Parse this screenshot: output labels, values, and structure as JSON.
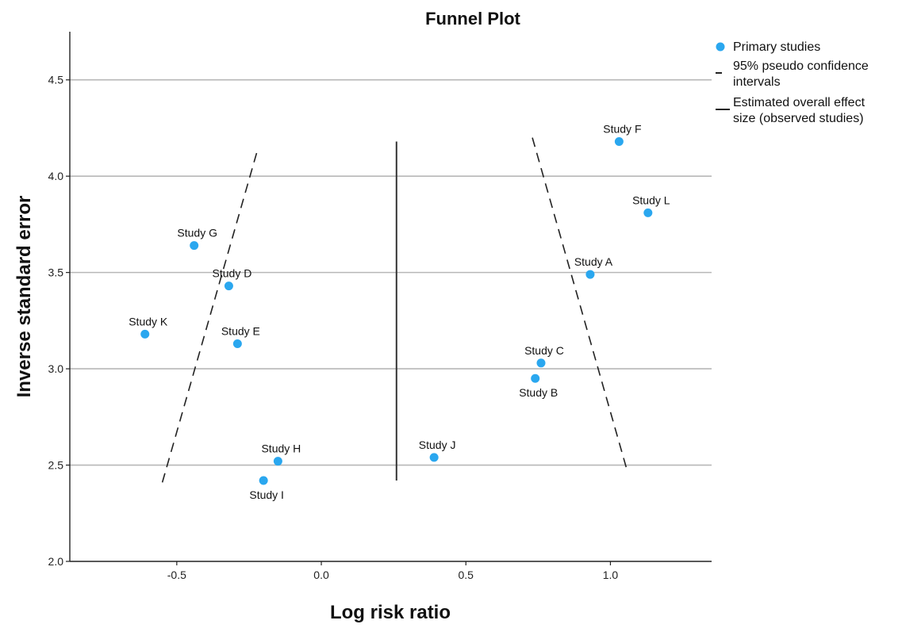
{
  "chart_data": {
    "type": "scatter",
    "title": "Funnel Plot",
    "xlabel": "Log risk ratio",
    "ylabel": "Inverse standard error",
    "xlim": [
      -0.87,
      1.35
    ],
    "ylim": [
      2.0,
      4.75
    ],
    "xticks": [
      -0.5,
      0.0,
      0.5,
      1.0
    ],
    "xtick_labels": [
      "-0.5",
      "0.0",
      "0.5",
      "1.0"
    ],
    "yticks": [
      2.0,
      2.5,
      3.0,
      3.5,
      4.0,
      4.5
    ],
    "ytick_labels": [
      "2.0",
      "2.5",
      "3.0",
      "3.5",
      "4.0",
      "4.5"
    ],
    "grid": "horizontal",
    "legend_position": "right",
    "series": [
      {
        "name": "Primary studies",
        "color": "#2aa7ef",
        "points": [
          {
            "label": "Study A",
            "x": 0.93,
            "y": 3.49
          },
          {
            "label": "Study B",
            "x": 0.74,
            "y": 2.95
          },
          {
            "label": "Study C",
            "x": 0.76,
            "y": 3.03
          },
          {
            "label": "Study D",
            "x": -0.32,
            "y": 3.43
          },
          {
            "label": "Study E",
            "x": -0.29,
            "y": 3.13
          },
          {
            "label": "Study F",
            "x": 1.03,
            "y": 4.18
          },
          {
            "label": "Study G",
            "x": -0.44,
            "y": 3.64
          },
          {
            "label": "Study H",
            "x": -0.15,
            "y": 2.52
          },
          {
            "label": "Study I",
            "x": -0.2,
            "y": 2.42
          },
          {
            "label": "Study J",
            "x": 0.39,
            "y": 2.54
          },
          {
            "label": "Study K",
            "x": -0.61,
            "y": 3.18
          },
          {
            "label": "Study L",
            "x": 1.13,
            "y": 3.81
          }
        ]
      }
    ],
    "confidence_intervals": {
      "name": "95% pseudo confidence intervals",
      "lower": [
        {
          "x": -0.55,
          "y": 2.41
        },
        {
          "x": -0.22,
          "y": 4.14
        }
      ],
      "upper": [
        {
          "x": 0.73,
          "y": 4.2
        },
        {
          "x": 1.06,
          "y": 2.46
        }
      ]
    },
    "overall_effect": {
      "name": "Estimated overall effect size (observed studies)",
      "x": 0.26,
      "y_range": [
        2.42,
        4.18
      ]
    }
  },
  "legend": {
    "items": [
      {
        "symbol": "point",
        "lines": [
          "Primary studies"
        ]
      },
      {
        "symbol": "dash",
        "lines": [
          "95% pseudo confidence",
          "intervals"
        ]
      },
      {
        "symbol": "solid",
        "lines": [
          "Estimated overall effect",
          "size (observed studies)"
        ]
      }
    ]
  }
}
